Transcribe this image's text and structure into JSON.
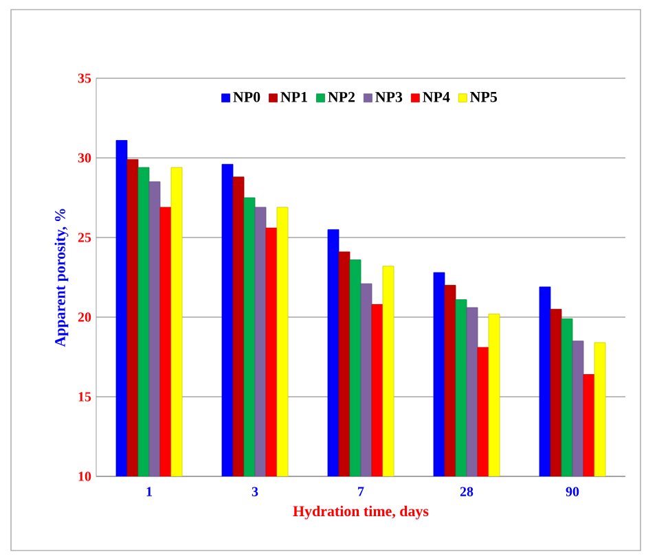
{
  "chart_data": {
    "type": "bar",
    "xlabel": "Hydration time, days",
    "ylabel": "Apparent porosity, %",
    "categories": [
      "1",
      "3",
      "7",
      "28",
      "90"
    ],
    "series": [
      {
        "name": "NP0",
        "color": "#0000ff",
        "values": [
          31.1,
          29.6,
          25.5,
          22.8,
          21.9
        ]
      },
      {
        "name": "NP1",
        "color": "#c00000",
        "values": [
          29.9,
          28.8,
          24.1,
          22.0,
          20.5
        ]
      },
      {
        "name": "NP2",
        "color": "#00b050",
        "values": [
          29.4,
          27.5,
          23.6,
          21.1,
          19.9
        ]
      },
      {
        "name": "NP3",
        "color": "#8064a2",
        "values": [
          28.5,
          26.9,
          22.1,
          20.6,
          18.5
        ]
      },
      {
        "name": "NP4",
        "color": "#ff0000",
        "values": [
          26.9,
          25.6,
          20.8,
          18.1,
          16.4
        ]
      },
      {
        "name": "NP5",
        "color": "#ffff00",
        "values": [
          29.4,
          26.9,
          23.2,
          20.2,
          18.4
        ]
      }
    ],
    "ylim": [
      10,
      35
    ],
    "yticks": [
      10,
      15,
      20,
      25,
      30,
      35
    ],
    "grid": "y",
    "legend": "top"
  }
}
